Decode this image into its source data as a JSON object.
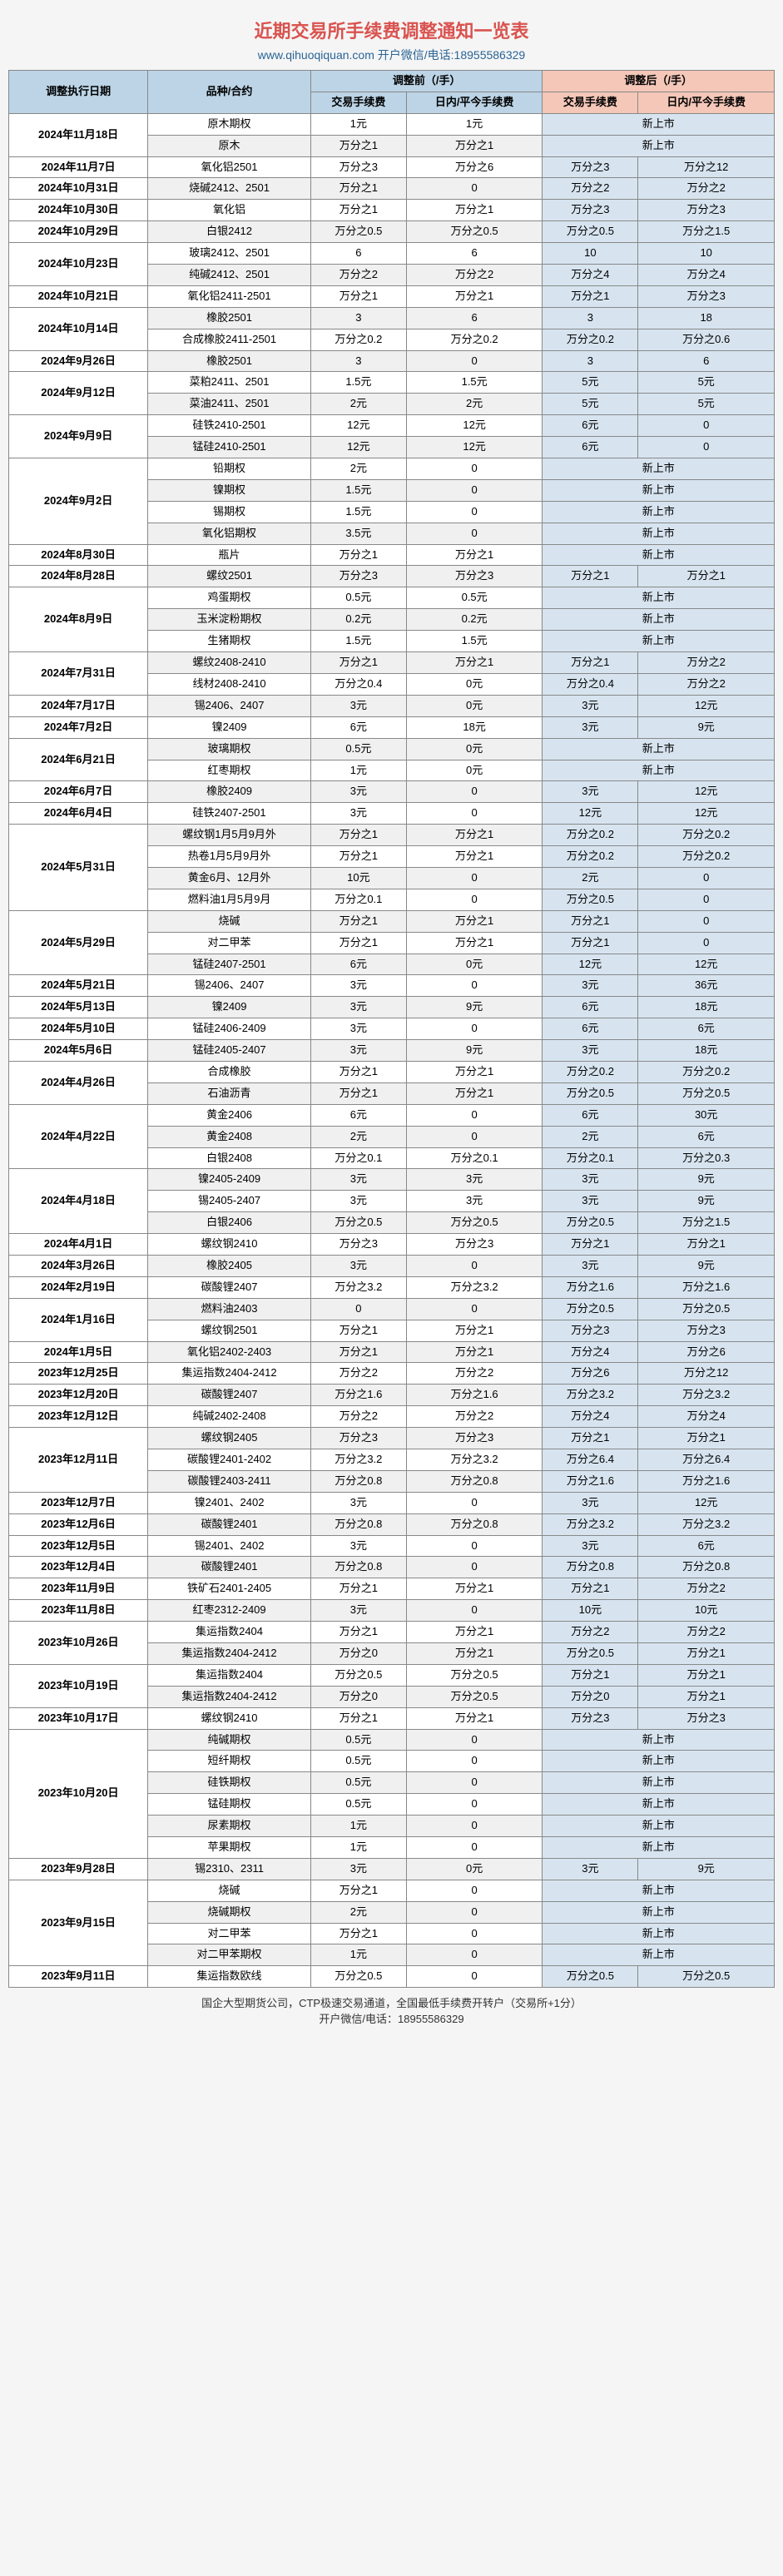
{
  "title": "近期交易所手续费调整通知一览表",
  "subtitle": "www.qihuoqiquan.com  开户微信/电话:18955586329",
  "footer": "国企大型期货公司，CTP极速交易通道，全国最低手续费开转户（交易所+1分）\n开户微信/电话：18955586329",
  "headers": {
    "date": "调整执行日期",
    "product": "品种/合约",
    "before": "调整前（/手）",
    "after": "调整后（/手）",
    "fee": "交易手续费",
    "intraday": "日内/平今手续费"
  },
  "groups": [
    {
      "date": "2024年11月18日",
      "rows": [
        {
          "p": "原木期权",
          "b1": "1元",
          "b2": "1元",
          "a1": "新上市",
          "a2": ""
        },
        {
          "p": "原木",
          "b1": "万分之1",
          "b2": "万分之1",
          "a1": "新上市",
          "a2": ""
        }
      ]
    },
    {
      "date": "2024年11月7日",
      "rows": [
        {
          "p": "氧化铝2501",
          "b1": "万分之3",
          "b2": "万分之6",
          "a1": "万分之3",
          "a2": "万分之12"
        }
      ]
    },
    {
      "date": "2024年10月31日",
      "rows": [
        {
          "p": "烧碱2412、2501",
          "b1": "万分之1",
          "b2": "0",
          "a1": "万分之2",
          "a2": "万分之2"
        }
      ]
    },
    {
      "date": "2024年10月30日",
      "rows": [
        {
          "p": "氧化铝",
          "b1": "万分之1",
          "b2": "万分之1",
          "a1": "万分之3",
          "a2": "万分之3"
        }
      ]
    },
    {
      "date": "2024年10月29日",
      "rows": [
        {
          "p": "白银2412",
          "b1": "万分之0.5",
          "b2": "万分之0.5",
          "a1": "万分之0.5",
          "a2": "万分之1.5"
        }
      ]
    },
    {
      "date": "2024年10月23日",
      "rows": [
        {
          "p": "玻璃2412、2501",
          "b1": "6",
          "b2": "6",
          "a1": "10",
          "a2": "10"
        },
        {
          "p": "纯碱2412、2501",
          "b1": "万分之2",
          "b2": "万分之2",
          "a1": "万分之4",
          "a2": "万分之4"
        }
      ]
    },
    {
      "date": "2024年10月21日",
      "rows": [
        {
          "p": "氧化铝2411-2501",
          "b1": "万分之1",
          "b2": "万分之1",
          "a1": "万分之1",
          "a2": "万分之3"
        }
      ]
    },
    {
      "date": "2024年10月14日",
      "rows": [
        {
          "p": "橡胶2501",
          "b1": "3",
          "b2": "6",
          "a1": "3",
          "a2": "18"
        },
        {
          "p": "合成橡胶2411-2501",
          "b1": "万分之0.2",
          "b2": "万分之0.2",
          "a1": "万分之0.2",
          "a2": "万分之0.6"
        }
      ]
    },
    {
      "date": "2024年9月26日",
      "rows": [
        {
          "p": "橡胶2501",
          "b1": "3",
          "b2": "0",
          "a1": "3",
          "a2": "6"
        }
      ]
    },
    {
      "date": "2024年9月12日",
      "rows": [
        {
          "p": "菜粕2411、2501",
          "b1": "1.5元",
          "b2": "1.5元",
          "a1": "5元",
          "a2": "5元"
        },
        {
          "p": "菜油2411、2501",
          "b1": "2元",
          "b2": "2元",
          "a1": "5元",
          "a2": "5元"
        }
      ]
    },
    {
      "date": "2024年9月9日",
      "rows": [
        {
          "p": "硅铁2410-2501",
          "b1": "12元",
          "b2": "12元",
          "a1": "6元",
          "a2": "0"
        },
        {
          "p": "锰硅2410-2501",
          "b1": "12元",
          "b2": "12元",
          "a1": "6元",
          "a2": "0"
        }
      ]
    },
    {
      "date": "2024年9月2日",
      "rows": [
        {
          "p": "铅期权",
          "b1": "2元",
          "b2": "0",
          "a1": "新上市",
          "a2": ""
        },
        {
          "p": "镍期权",
          "b1": "1.5元",
          "b2": "0",
          "a1": "新上市",
          "a2": ""
        },
        {
          "p": "锡期权",
          "b1": "1.5元",
          "b2": "0",
          "a1": "新上市",
          "a2": ""
        },
        {
          "p": "氧化铝期权",
          "b1": "3.5元",
          "b2": "0",
          "a1": "新上市",
          "a2": ""
        }
      ]
    },
    {
      "date": "2024年8月30日",
      "rows": [
        {
          "p": "瓶片",
          "b1": "万分之1",
          "b2": "万分之1",
          "a1": "新上市",
          "a2": ""
        }
      ]
    },
    {
      "date": "2024年8月28日",
      "rows": [
        {
          "p": "螺纹2501",
          "b1": "万分之3",
          "b2": "万分之3",
          "a1": "万分之1",
          "a2": "万分之1"
        }
      ]
    },
    {
      "date": "2024年8月9日",
      "rows": [
        {
          "p": "鸡蛋期权",
          "b1": "0.5元",
          "b2": "0.5元",
          "a1": "新上市",
          "a2": ""
        },
        {
          "p": "玉米淀粉期权",
          "b1": "0.2元",
          "b2": "0.2元",
          "a1": "新上市",
          "a2": ""
        },
        {
          "p": "生猪期权",
          "b1": "1.5元",
          "b2": "1.5元",
          "a1": "新上市",
          "a2": ""
        }
      ]
    },
    {
      "date": "2024年7月31日",
      "rows": [
        {
          "p": "螺纹2408-2410",
          "b1": "万分之1",
          "b2": "万分之1",
          "a1": "万分之1",
          "a2": "万分之2"
        },
        {
          "p": "线材2408-2410",
          "b1": "万分之0.4",
          "b2": "0元",
          "a1": "万分之0.4",
          "a2": "万分之2"
        }
      ]
    },
    {
      "date": "2024年7月17日",
      "rows": [
        {
          "p": "锡2406、2407",
          "b1": "3元",
          "b2": "0元",
          "a1": "3元",
          "a2": "12元"
        }
      ]
    },
    {
      "date": "2024年7月2日",
      "rows": [
        {
          "p": "镍2409",
          "b1": "6元",
          "b2": "18元",
          "a1": "3元",
          "a2": "9元"
        }
      ]
    },
    {
      "date": "2024年6月21日",
      "rows": [
        {
          "p": "玻璃期权",
          "b1": "0.5元",
          "b2": "0元",
          "a1": "新上市",
          "a2": ""
        },
        {
          "p": "红枣期权",
          "b1": "1元",
          "b2": "0元",
          "a1": "新上市",
          "a2": ""
        }
      ]
    },
    {
      "date": "2024年6月7日",
      "rows": [
        {
          "p": "橡胶2409",
          "b1": "3元",
          "b2": "0",
          "a1": "3元",
          "a2": "12元"
        }
      ]
    },
    {
      "date": "2024年6月4日",
      "rows": [
        {
          "p": "硅铁2407-2501",
          "b1": "3元",
          "b2": "0",
          "a1": "12元",
          "a2": "12元"
        }
      ]
    },
    {
      "date": "2024年5月31日",
      "rows": [
        {
          "p": "螺纹钢1月5月9月外",
          "b1": "万分之1",
          "b2": "万分之1",
          "a1": "万分之0.2",
          "a2": "万分之0.2"
        },
        {
          "p": "热卷1月5月9月外",
          "b1": "万分之1",
          "b2": "万分之1",
          "a1": "万分之0.2",
          "a2": "万分之0.2"
        },
        {
          "p": "黄金6月、12月外",
          "b1": "10元",
          "b2": "0",
          "a1": "2元",
          "a2": "0"
        },
        {
          "p": "燃料油1月5月9月",
          "b1": "万分之0.1",
          "b2": "0",
          "a1": "万分之0.5",
          "a2": "0"
        }
      ]
    },
    {
      "date": "2024年5月29日",
      "rows": [
        {
          "p": "烧碱",
          "b1": "万分之1",
          "b2": "万分之1",
          "a1": "万分之1",
          "a2": "0"
        },
        {
          "p": "对二甲苯",
          "b1": "万分之1",
          "b2": "万分之1",
          "a1": "万分之1",
          "a2": "0"
        },
        {
          "p": "锰硅2407-2501",
          "b1": "6元",
          "b2": "0元",
          "a1": "12元",
          "a2": "12元"
        }
      ]
    },
    {
      "date": "2024年5月21日",
      "rows": [
        {
          "p": "锡2406、2407",
          "b1": "3元",
          "b2": "0",
          "a1": "3元",
          "a2": "36元"
        }
      ]
    },
    {
      "date": "2024年5月13日",
      "rows": [
        {
          "p": "镍2409",
          "b1": "3元",
          "b2": "9元",
          "a1": "6元",
          "a2": "18元"
        }
      ]
    },
    {
      "date": "2024年5月10日",
      "rows": [
        {
          "p": "锰硅2406-2409",
          "b1": "3元",
          "b2": "0",
          "a1": "6元",
          "a2": "6元"
        }
      ]
    },
    {
      "date": "2024年5月6日",
      "rows": [
        {
          "p": "锰硅2405-2407",
          "b1": "3元",
          "b2": "9元",
          "a1": "3元",
          "a2": "18元"
        }
      ]
    },
    {
      "date": "2024年4月26日",
      "rows": [
        {
          "p": "合成橡胶",
          "b1": "万分之1",
          "b2": "万分之1",
          "a1": "万分之0.2",
          "a2": "万分之0.2"
        },
        {
          "p": "石油沥青",
          "b1": "万分之1",
          "b2": "万分之1",
          "a1": "万分之0.5",
          "a2": "万分之0.5"
        }
      ]
    },
    {
      "date": "2024年4月22日",
      "rows": [
        {
          "p": "黄金2406",
          "b1": "6元",
          "b2": "0",
          "a1": "6元",
          "a2": "30元"
        },
        {
          "p": "黄金2408",
          "b1": "2元",
          "b2": "0",
          "a1": "2元",
          "a2": "6元"
        },
        {
          "p": "白银2408",
          "b1": "万分之0.1",
          "b2": "万分之0.1",
          "a1": "万分之0.1",
          "a2": "万分之0.3"
        }
      ]
    },
    {
      "date": "2024年4月18日",
      "rows": [
        {
          "p": "镍2405-2409",
          "b1": "3元",
          "b2": "3元",
          "a1": "3元",
          "a2": "9元"
        },
        {
          "p": "锡2405-2407",
          "b1": "3元",
          "b2": "3元",
          "a1": "3元",
          "a2": "9元"
        },
        {
          "p": "白银2406",
          "b1": "万分之0.5",
          "b2": "万分之0.5",
          "a1": "万分之0.5",
          "a2": "万分之1.5"
        }
      ]
    },
    {
      "date": "2024年4月1日",
      "rows": [
        {
          "p": "螺纹钢2410",
          "b1": "万分之3",
          "b2": "万分之3",
          "a1": "万分之1",
          "a2": "万分之1"
        }
      ]
    },
    {
      "date": "2024年3月26日",
      "rows": [
        {
          "p": "橡胶2405",
          "b1": "3元",
          "b2": "0",
          "a1": "3元",
          "a2": "9元"
        }
      ]
    },
    {
      "date": "2024年2月19日",
      "rows": [
        {
          "p": "碳酸锂2407",
          "b1": "万分之3.2",
          "b2": "万分之3.2",
          "a1": "万分之1.6",
          "a2": "万分之1.6"
        }
      ]
    },
    {
      "date": "2024年1月16日",
      "rows": [
        {
          "p": "燃料油2403",
          "b1": "0",
          "b2": "0",
          "a1": "万分之0.5",
          "a2": "万分之0.5"
        },
        {
          "p": "螺纹钢2501",
          "b1": "万分之1",
          "b2": "万分之1",
          "a1": "万分之3",
          "a2": "万分之3"
        }
      ]
    },
    {
      "date": "2024年1月5日",
      "rows": [
        {
          "p": "氧化铝2402-2403",
          "b1": "万分之1",
          "b2": "万分之1",
          "a1": "万分之4",
          "a2": "万分之6"
        }
      ]
    },
    {
      "date": "2023年12月25日",
      "rows": [
        {
          "p": "集运指数2404-2412",
          "b1": "万分之2",
          "b2": "万分之2",
          "a1": "万分之6",
          "a2": "万分之12"
        }
      ]
    },
    {
      "date": "2023年12月20日",
      "rows": [
        {
          "p": "碳酸锂2407",
          "b1": "万分之1.6",
          "b2": "万分之1.6",
          "a1": "万分之3.2",
          "a2": "万分之3.2"
        }
      ]
    },
    {
      "date": "2023年12月12日",
      "rows": [
        {
          "p": "纯碱2402-2408",
          "b1": "万分之2",
          "b2": "万分之2",
          "a1": "万分之4",
          "a2": "万分之4"
        }
      ]
    },
    {
      "date": "2023年12月11日",
      "rows": [
        {
          "p": "螺纹钢2405",
          "b1": "万分之3",
          "b2": "万分之3",
          "a1": "万分之1",
          "a2": "万分之1"
        },
        {
          "p": "碳酸锂2401-2402",
          "b1": "万分之3.2",
          "b2": "万分之3.2",
          "a1": "万分之6.4",
          "a2": "万分之6.4"
        },
        {
          "p": "碳酸锂2403-2411",
          "b1": "万分之0.8",
          "b2": "万分之0.8",
          "a1": "万分之1.6",
          "a2": "万分之1.6"
        }
      ]
    },
    {
      "date": "2023年12月7日",
      "rows": [
        {
          "p": "镍2401、2402",
          "b1": "3元",
          "b2": "0",
          "a1": "3元",
          "a2": "12元"
        }
      ]
    },
    {
      "date": "2023年12月6日",
      "rows": [
        {
          "p": "碳酸锂2401",
          "b1": "万分之0.8",
          "b2": "万分之0.8",
          "a1": "万分之3.2",
          "a2": "万分之3.2"
        }
      ]
    },
    {
      "date": "2023年12月5日",
      "rows": [
        {
          "p": "锡2401、2402",
          "b1": "3元",
          "b2": "0",
          "a1": "3元",
          "a2": "6元"
        }
      ]
    },
    {
      "date": "2023年12月4日",
      "rows": [
        {
          "p": "碳酸锂2401",
          "b1": "万分之0.8",
          "b2": "0",
          "a1": "万分之0.8",
          "a2": "万分之0.8"
        }
      ]
    },
    {
      "date": "2023年11月9日",
      "rows": [
        {
          "p": "铁矿石2401-2405",
          "b1": "万分之1",
          "b2": "万分之1",
          "a1": "万分之1",
          "a2": "万分之2"
        }
      ]
    },
    {
      "date": "2023年11月8日",
      "rows": [
        {
          "p": "红枣2312-2409",
          "b1": "3元",
          "b2": "0",
          "a1": "10元",
          "a2": "10元"
        }
      ]
    },
    {
      "date": "2023年10月26日",
      "rows": [
        {
          "p": "集运指数2404",
          "b1": "万分之1",
          "b2": "万分之1",
          "a1": "万分之2",
          "a2": "万分之2"
        },
        {
          "p": "集运指数2404-2412",
          "b1": "万分之0",
          "b2": "万分之1",
          "a1": "万分之0.5",
          "a2": "万分之1"
        }
      ]
    },
    {
      "date": "2023年10月19日",
      "rows": [
        {
          "p": "集运指数2404",
          "b1": "万分之0.5",
          "b2": "万分之0.5",
          "a1": "万分之1",
          "a2": "万分之1"
        },
        {
          "p": "集运指数2404-2412",
          "b1": "万分之0",
          "b2": "万分之0.5",
          "a1": "万分之0",
          "a2": "万分之1"
        }
      ]
    },
    {
      "date": "2023年10月17日",
      "rows": [
        {
          "p": "螺纹钢2410",
          "b1": "万分之1",
          "b2": "万分之1",
          "a1": "万分之3",
          "a2": "万分之3"
        }
      ]
    },
    {
      "date": "2023年10月20日",
      "rows": [
        {
          "p": "纯碱期权",
          "b1": "0.5元",
          "b2": "0",
          "a1": "新上市",
          "a2": ""
        },
        {
          "p": "短纤期权",
          "b1": "0.5元",
          "b2": "0",
          "a1": "新上市",
          "a2": ""
        },
        {
          "p": "硅铁期权",
          "b1": "0.5元",
          "b2": "0",
          "a1": "新上市",
          "a2": ""
        },
        {
          "p": "锰硅期权",
          "b1": "0.5元",
          "b2": "0",
          "a1": "新上市",
          "a2": ""
        },
        {
          "p": "尿素期权",
          "b1": "1元",
          "b2": "0",
          "a1": "新上市",
          "a2": ""
        },
        {
          "p": "苹果期权",
          "b1": "1元",
          "b2": "0",
          "a1": "新上市",
          "a2": ""
        }
      ]
    },
    {
      "date": "2023年9月28日",
      "rows": [
        {
          "p": "锡2310、2311",
          "b1": "3元",
          "b2": "0元",
          "a1": "3元",
          "a2": "9元"
        }
      ]
    },
    {
      "date": "2023年9月15日",
      "rows": [
        {
          "p": "烧碱",
          "b1": "万分之1",
          "b2": "0",
          "a1": "新上市",
          "a2": ""
        },
        {
          "p": "烧碱期权",
          "b1": "2元",
          "b2": "0",
          "a1": "新上市",
          "a2": ""
        },
        {
          "p": "对二甲苯",
          "b1": "万分之1",
          "b2": "0",
          "a1": "新上市",
          "a2": ""
        },
        {
          "p": "对二甲苯期权",
          "b1": "1元",
          "b2": "0",
          "a1": "新上市",
          "a2": ""
        }
      ]
    },
    {
      "date": "2023年9月11日",
      "rows": [
        {
          "p": "集运指数欧线",
          "b1": "万分之0.5",
          "b2": "0",
          "a1": "万分之0.5",
          "a2": "万分之0.5"
        }
      ]
    }
  ]
}
